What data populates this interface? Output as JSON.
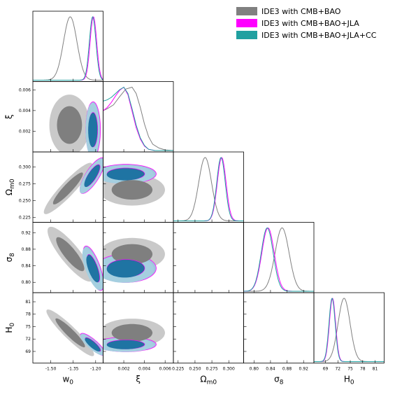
{
  "chart_data": {
    "type": "corner-triangle",
    "parameters": [
      "w0",
      "ξ",
      "Ωm0",
      "σ8",
      "H0"
    ],
    "axis_labels": {
      "w0": {
        "base": "w",
        "sub": "0"
      },
      "xi": {
        "base": "ξ",
        "sub": ""
      },
      "om": {
        "base": "Ω",
        "sub": "m0"
      },
      "s8": {
        "base": "σ",
        "sub": "8"
      },
      "h0": {
        "base": "H",
        "sub": "0"
      }
    },
    "ranges": {
      "w0": [
        -1.62,
        -1.15
      ],
      "xi": [
        0.0,
        0.0068
      ],
      "om": [
        0.218,
        0.322
      ],
      "s8": [
        0.775,
        0.945
      ],
      "h0": [
        66.2,
        83.2
      ]
    },
    "ticks": {
      "w0": [
        {
          "v": -1.5,
          "t": "-1.50"
        },
        {
          "v": -1.35,
          "t": "-1.35"
        },
        {
          "v": -1.2,
          "t": "-1.20"
        }
      ],
      "xi": [
        {
          "v": 0.002,
          "t": "0.002"
        },
        {
          "v": 0.004,
          "t": "0.004"
        },
        {
          "v": 0.006,
          "t": "0.006"
        }
      ],
      "xi_y": [
        {
          "v": 0.002,
          "t": "0.002"
        },
        {
          "v": 0.004,
          "t": "0.004"
        },
        {
          "v": 0.006,
          "t": "0.006"
        }
      ],
      "om": [
        {
          "v": 0.225,
          "t": "0.225"
        },
        {
          "v": 0.25,
          "t": "0.250"
        },
        {
          "v": 0.275,
          "t": "0.275"
        },
        {
          "v": 0.3,
          "t": "0.300"
        }
      ],
      "s8": [
        {
          "v": 0.8,
          "t": "0.80"
        },
        {
          "v": 0.84,
          "t": "0.84"
        },
        {
          "v": 0.88,
          "t": "0.88"
        },
        {
          "v": 0.92,
          "t": "0.92"
        }
      ],
      "h0": [
        {
          "v": 69,
          "t": "69"
        },
        {
          "v": 72,
          "t": "72"
        },
        {
          "v": 75,
          "t": "75"
        },
        {
          "v": 78,
          "t": "78"
        },
        {
          "v": 81,
          "t": "81"
        }
      ]
    },
    "series": [
      {
        "name": "IDE3 with CMB+BAO",
        "color": "#808080",
        "inner": "#7f7f7f",
        "outer": "#c9c9c9"
      },
      {
        "name": "IDE3 with CMB+BAO+JLA",
        "color": "#ff00ff",
        "inner": "#2b6d9f",
        "outer": "#9fc5de"
      },
      {
        "name": "IDE3 with CMB+BAO+JLA+CC",
        "color": "#20a0a0",
        "inner": "#1f74a3",
        "outer": "#a5cfe0"
      }
    ],
    "marginals": {
      "w0": [
        {
          "mean": -1.37,
          "sd": 0.045
        },
        {
          "mean": -1.215,
          "sd": 0.022
        },
        {
          "mean": -1.22,
          "sd": 0.022
        }
      ],
      "om": [
        {
          "mean": 0.265,
          "sd": 0.0095
        },
        {
          "mean": 0.2895,
          "sd": 0.0065
        },
        {
          "mean": 0.2885,
          "sd": 0.0063
        }
      ],
      "s8": [
        {
          "mean": 0.868,
          "sd": 0.017
        },
        {
          "mean": 0.834,
          "sd": 0.015
        },
        {
          "mean": 0.832,
          "sd": 0.0145
        }
      ],
      "h0": [
        {
          "mean": 73.5,
          "sd": 1.45
        },
        {
          "mean": 70.7,
          "sd": 0.75
        },
        {
          "mean": 70.6,
          "sd": 0.75
        }
      ],
      "xi": [
        {
          "points": [
            [
              0.0,
              0.63
            ],
            [
              0.0004,
              0.66
            ],
            [
              0.001,
              0.72
            ],
            [
              0.0016,
              0.85
            ],
            [
              0.0022,
              0.97
            ],
            [
              0.0028,
              1.0
            ],
            [
              0.0032,
              0.9
            ],
            [
              0.0036,
              0.68
            ],
            [
              0.004,
              0.42
            ],
            [
              0.0044,
              0.22
            ],
            [
              0.0048,
              0.1
            ],
            [
              0.0054,
              0.04
            ],
            [
              0.006,
              0.01
            ],
            [
              0.0068,
              0.0
            ]
          ]
        },
        {
          "points": [
            [
              0.0,
              0.63
            ],
            [
              0.0004,
              0.68
            ],
            [
              0.0008,
              0.76
            ],
            [
              0.0012,
              0.86
            ],
            [
              0.0016,
              0.95
            ],
            [
              0.002,
              1.0
            ],
            [
              0.0024,
              0.88
            ],
            [
              0.0028,
              0.62
            ],
            [
              0.0032,
              0.36
            ],
            [
              0.0036,
              0.18
            ],
            [
              0.004,
              0.07
            ],
            [
              0.0044,
              0.02
            ],
            [
              0.005,
              0.0
            ],
            [
              0.0068,
              0.0
            ]
          ]
        },
        {
          "points": [
            [
              0.0,
              0.78
            ],
            [
              0.0004,
              0.8
            ],
            [
              0.0008,
              0.84
            ],
            [
              0.0012,
              0.9
            ],
            [
              0.0016,
              0.96
            ],
            [
              0.002,
              1.0
            ],
            [
              0.0024,
              0.9
            ],
            [
              0.0028,
              0.66
            ],
            [
              0.0032,
              0.4
            ],
            [
              0.0036,
              0.2
            ],
            [
              0.004,
              0.08
            ],
            [
              0.0044,
              0.02
            ],
            [
              0.005,
              0.0
            ],
            [
              0.0068,
              0.0
            ]
          ]
        }
      ]
    },
    "contours": {
      "om|w0": [
        {
          "cx": -1.385,
          "cy": 0.268,
          "sx": 0.066,
          "sy": 0.0155,
          "rho": 0.92
        },
        {
          "cx": -1.222,
          "cy": 0.287,
          "sx": 0.034,
          "sy": 0.0108,
          "rho": 0.78
        },
        {
          "cx": -1.226,
          "cy": 0.286,
          "sx": 0.033,
          "sy": 0.0104,
          "rho": 0.78
        }
      ],
      "s8|w0": [
        {
          "cx": -1.37,
          "cy": 0.868,
          "sx": 0.062,
          "sy": 0.027,
          "rho": -0.85
        },
        {
          "cx": -1.215,
          "cy": 0.834,
          "sx": 0.028,
          "sy": 0.022,
          "rho": -0.7
        },
        {
          "cx": -1.22,
          "cy": 0.832,
          "sx": 0.028,
          "sy": 0.021,
          "rho": -0.7
        }
      ],
      "h0|w0": [
        {
          "cx": -1.37,
          "cy": 73.5,
          "sx": 0.065,
          "sy": 2.3,
          "rho": -0.93
        },
        {
          "cx": -1.218,
          "cy": 70.7,
          "sx": 0.034,
          "sy": 1.1,
          "rho": -0.85
        },
        {
          "cx": -1.222,
          "cy": 70.6,
          "sx": 0.033,
          "sy": 1.05,
          "rho": -0.85
        }
      ],
      "om|s8": [
        {
          "cx": 0.867,
          "cy": 0.2655,
          "sx": 0.025,
          "sy": 0.0145,
          "rho": -0.85
        },
        {
          "cx": 0.834,
          "cy": 0.2885,
          "sx": 0.022,
          "sy": 0.0095,
          "rho": -0.55
        },
        {
          "cx": 0.832,
          "cy": 0.2875,
          "sx": 0.021,
          "sy": 0.0092,
          "rho": -0.55
        }
      ],
      "om|h0": [
        {
          "cx": 0.265,
          "cy": 73.5,
          "sx": 0.014,
          "sy": 2.25,
          "rho": -0.98
        },
        {
          "cx": 0.2895,
          "cy": 70.7,
          "sx": 0.0092,
          "sy": 1.15,
          "rho": -0.96
        },
        {
          "cx": 0.2885,
          "cy": 70.6,
          "sx": 0.009,
          "sy": 1.1,
          "rho": -0.96
        }
      ],
      "s8|h0": [
        {
          "cx": 0.868,
          "cy": 73.5,
          "sx": 0.025,
          "sy": 2.3,
          "rho": 0.88
        },
        {
          "cx": 0.834,
          "cy": 70.7,
          "sx": 0.022,
          "sy": 1.1,
          "rho": 0.75
        },
        {
          "cx": 0.832,
          "cy": 70.6,
          "sx": 0.021,
          "sy": 1.05,
          "rho": 0.75
        }
      ],
      "xi|w0": [
        {
          "cx": -1.375,
          "cy": 0.0026,
          "sx": 0.055,
          "sy": 0.0012,
          "rho": 0.0
        },
        {
          "cx": -1.217,
          "cy": 0.00215,
          "sx": 0.02,
          "sy": 0.0011,
          "rho": 0.0
        },
        {
          "cx": -1.221,
          "cy": 0.0021,
          "sx": 0.019,
          "sy": 0.00108,
          "rho": 0.0
        }
      ],
      "om|xi": [
        {
          "cx": 0.0028,
          "cy": 0.266,
          "sx": 0.0013,
          "sy": 0.0095,
          "rho": 0.0
        },
        {
          "cx": 0.0022,
          "cy": 0.2895,
          "sx": 0.0012,
          "sy": 0.0058,
          "rho": 0.0
        },
        {
          "cx": 0.0021,
          "cy": 0.2885,
          "sx": 0.00115,
          "sy": 0.0056,
          "rho": 0.0
        }
      ],
      "s8|xi": [
        {
          "cx": 0.0028,
          "cy": 0.868,
          "sx": 0.0013,
          "sy": 0.016,
          "rho": 0.0
        },
        {
          "cx": 0.0022,
          "cy": 0.834,
          "sx": 0.0012,
          "sy": 0.014,
          "rho": 0.0
        },
        {
          "cx": 0.0021,
          "cy": 0.832,
          "sx": 0.00115,
          "sy": 0.0135,
          "rho": 0.0
        }
      ],
      "h0|xi": [
        {
          "cx": 0.0028,
          "cy": 73.5,
          "sx": 0.0013,
          "sy": 1.4,
          "rho": 0.0
        },
        {
          "cx": 0.0022,
          "cy": 70.7,
          "sx": 0.0012,
          "sy": 0.72,
          "rho": 0.0
        },
        {
          "cx": 0.0021,
          "cy": 70.6,
          "sx": 0.00115,
          "sy": 0.7,
          "rho": 0.0
        }
      ]
    },
    "legend": {
      "placement": "top-right"
    }
  }
}
